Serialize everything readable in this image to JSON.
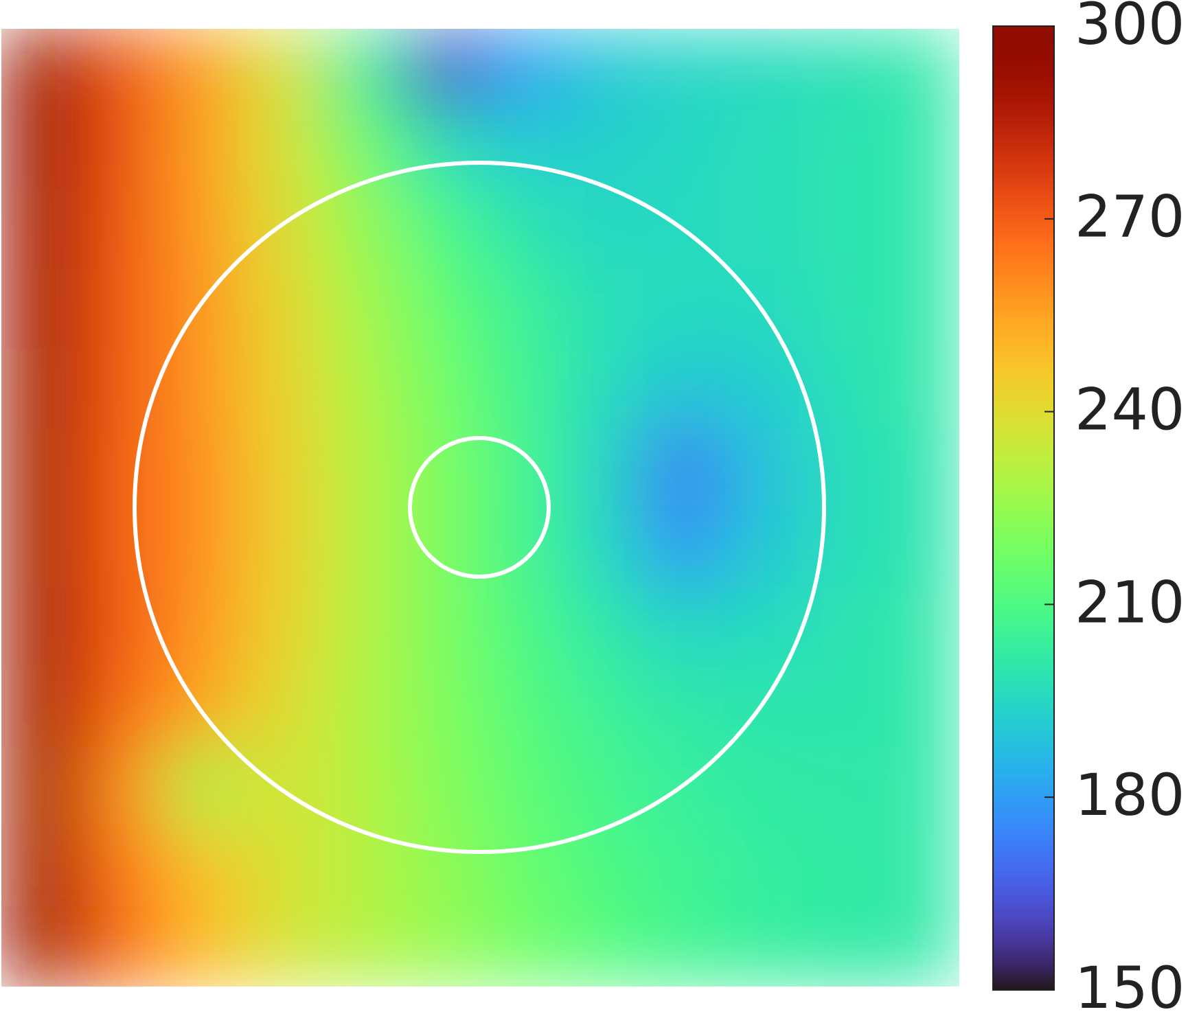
{
  "chart_data": {
    "type": "heatmap",
    "colormap": "turbo",
    "zlim": [
      150,
      300
    ],
    "zticks": [
      150,
      180,
      210,
      240,
      270,
      300
    ],
    "z": [
      [
        292,
        272,
        257,
        238,
        205,
        162,
        180,
        190,
        194,
        196,
        198,
        201
      ],
      [
        292,
        272,
        256,
        238,
        218,
        198,
        192,
        193,
        195,
        197,
        199,
        201
      ],
      [
        291,
        271,
        257,
        240,
        225,
        210,
        200,
        195,
        196,
        197,
        199,
        201
      ],
      [
        291,
        270,
        258,
        242,
        228,
        215,
        205,
        198,
        196,
        196,
        199,
        201
      ],
      [
        290,
        270,
        258,
        243,
        230,
        218,
        207,
        197,
        190,
        192,
        198,
        201
      ],
      [
        290,
        269,
        259,
        244,
        231,
        220,
        208,
        195,
        172,
        188,
        197,
        200
      ],
      [
        290,
        269,
        259,
        244,
        231,
        220,
        208,
        196,
        178,
        190,
        197,
        200
      ],
      [
        290,
        270,
        258,
        243,
        231,
        220,
        210,
        201,
        195,
        196,
        199,
        201
      ],
      [
        290,
        268,
        255,
        240,
        230,
        221,
        212,
        205,
        201,
        200,
        200,
        201
      ],
      [
        290,
        260,
        228,
        238,
        231,
        222,
        214,
        208,
        204,
        202,
        201,
        201
      ],
      [
        290,
        265,
        248,
        238,
        231,
        224,
        216,
        210,
        206,
        203,
        202,
        201
      ],
      [
        291,
        268,
        250,
        238,
        231,
        225,
        218,
        212,
        207,
        204,
        202,
        201
      ]
    ]
  }
}
